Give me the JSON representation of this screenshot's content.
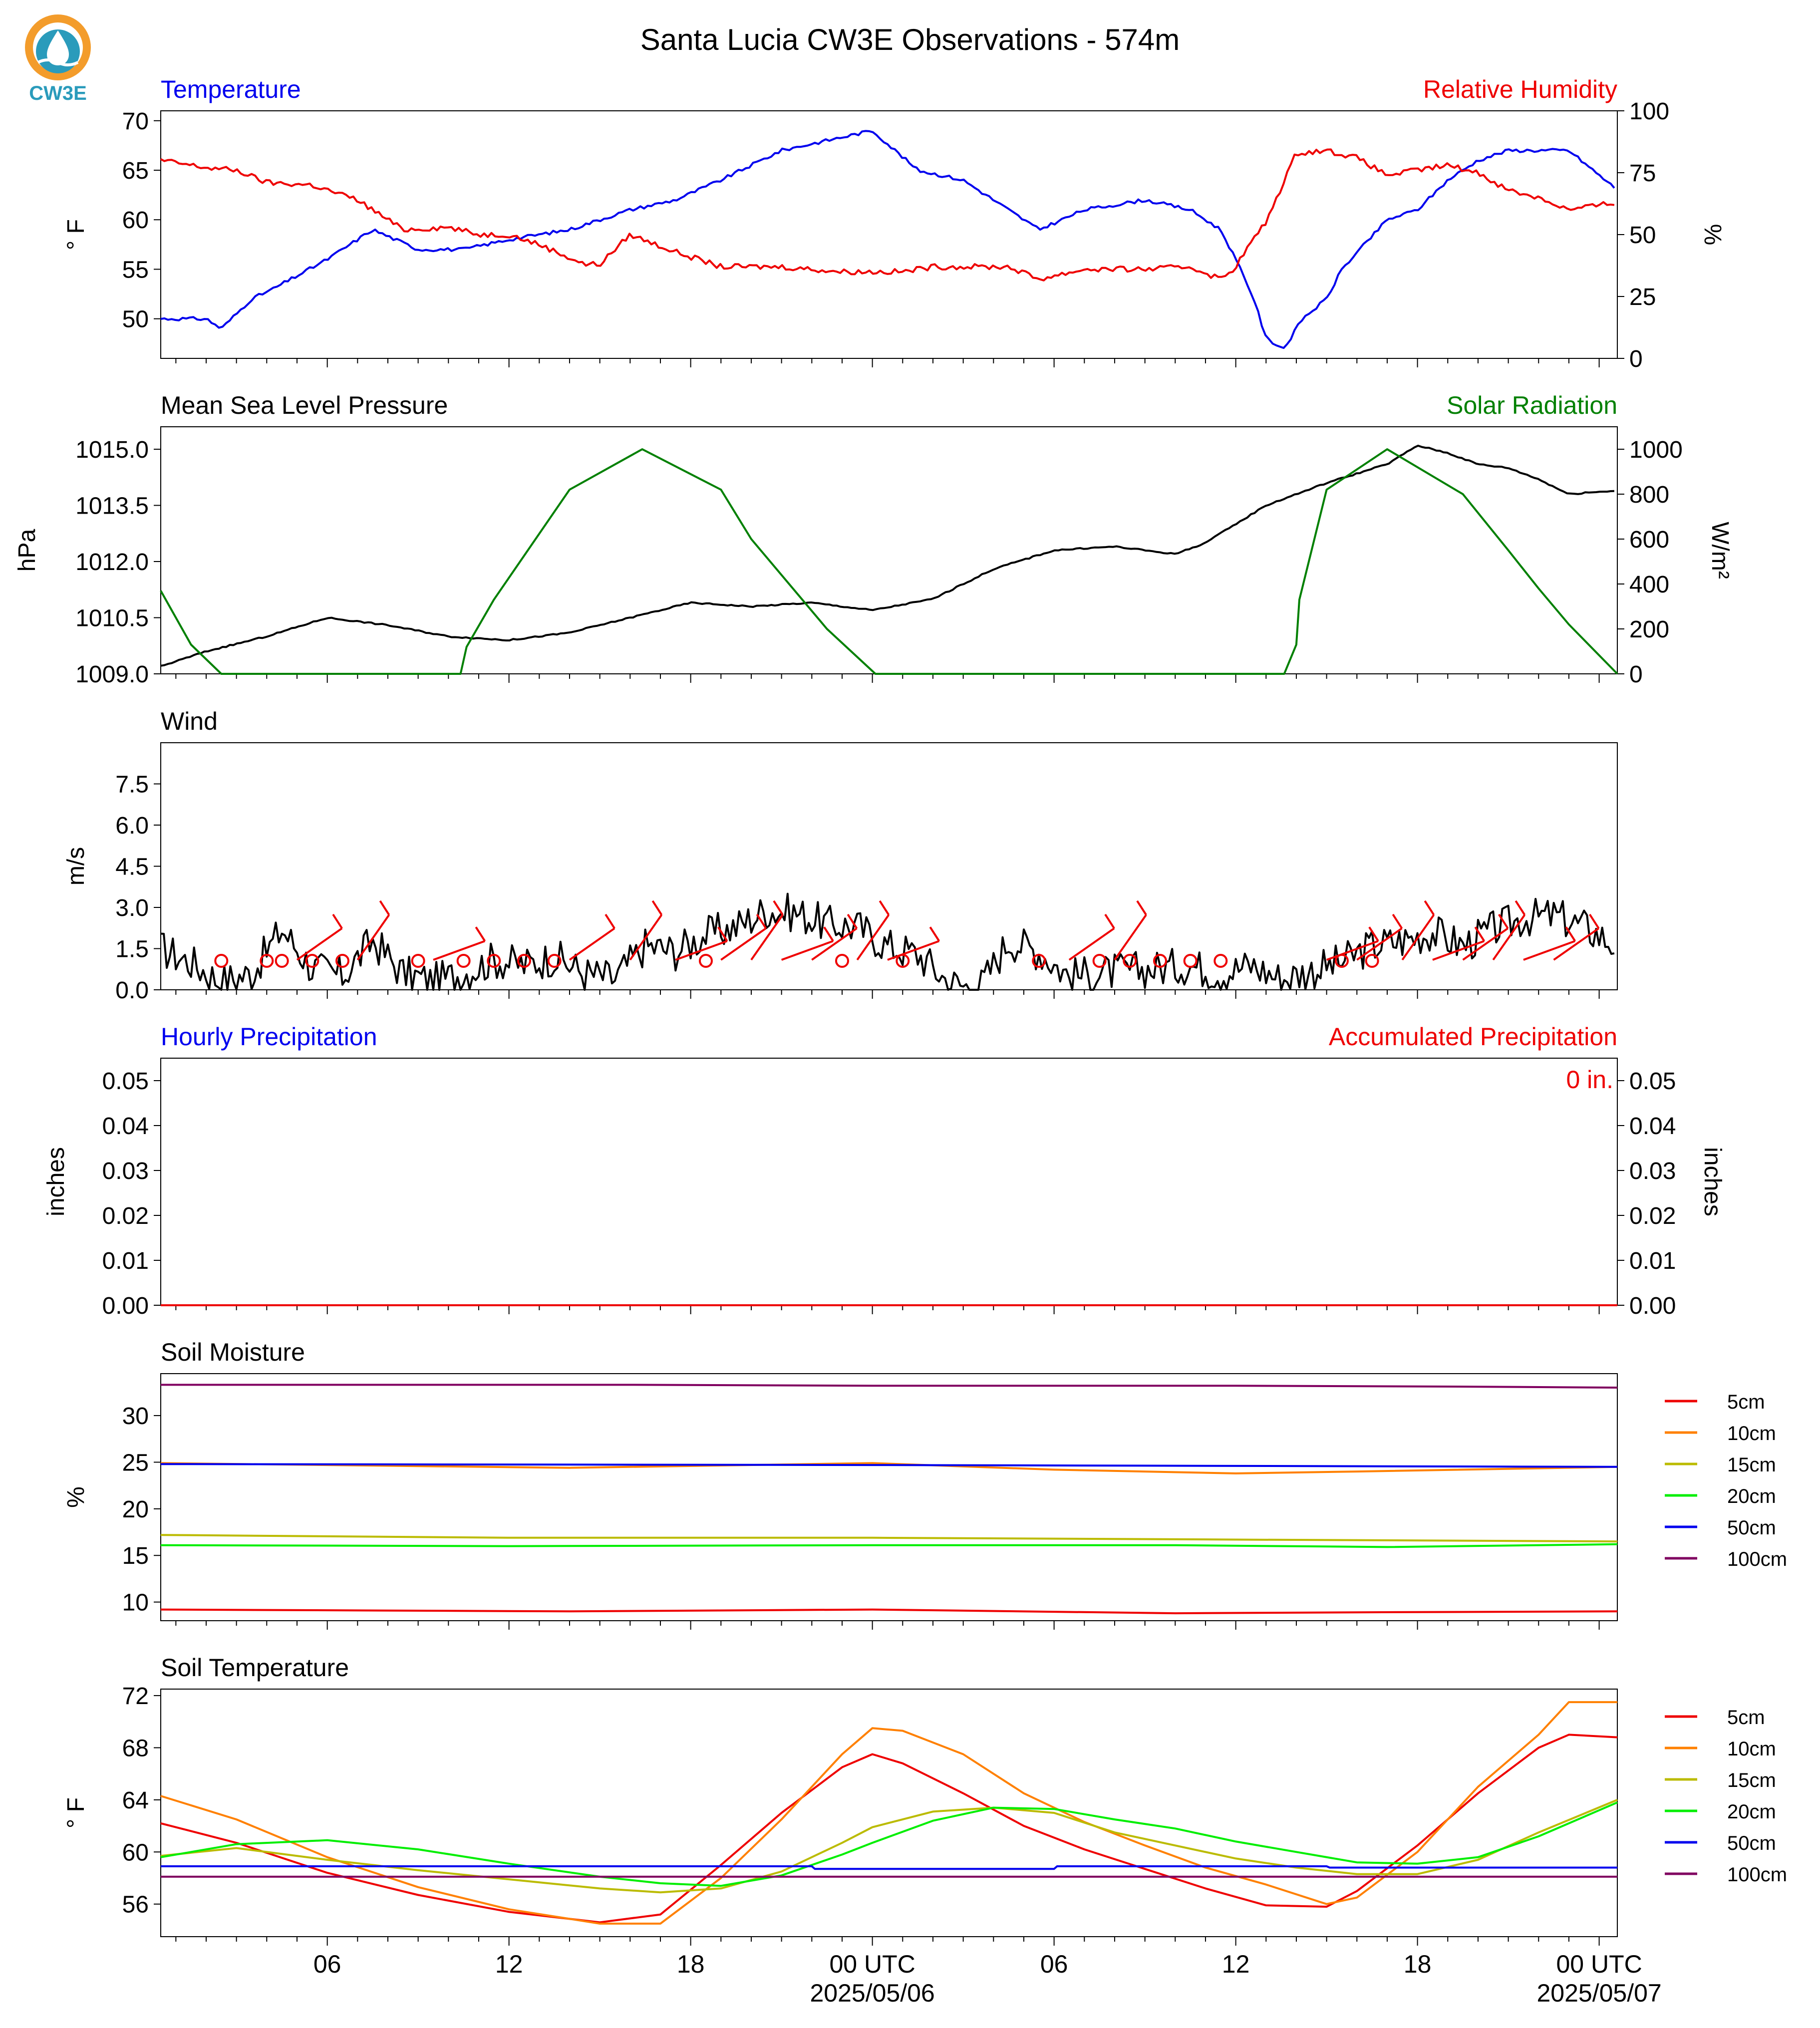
{
  "title": "Santa Lucia CW3E Observations - 574m",
  "logo": {
    "text": "CW3E",
    "colors": {
      "ring": "#f39c2b",
      "water": "#2a9bbb",
      "drop": "#1f6f8b"
    }
  },
  "colors": {
    "blue": "#0000ee",
    "red": "#ee0000",
    "black": "#000000",
    "green": "#008000"
  },
  "time_axis": {
    "range_hours": [
      -23.5,
      24.6
    ],
    "tick_labels": [
      {
        "h": -18,
        "label": "06"
      },
      {
        "h": -12,
        "label": "12"
      },
      {
        "h": -6,
        "label": "18"
      },
      {
        "h": 0,
        "label": "00 UTC",
        "sub": "2025/05/06"
      },
      {
        "h": 6,
        "label": "06"
      },
      {
        "h": 12,
        "label": "12"
      },
      {
        "h": 18,
        "label": "18"
      },
      {
        "h": 24,
        "label": "00 UTC",
        "sub": "2025/05/07"
      }
    ]
  },
  "panels": [
    {
      "id": "temp_rh",
      "title_left": "Temperature",
      "title_left_color": "#0000ee",
      "title_right": "Relative Humidity",
      "title_right_color": "#ee0000",
      "ylabel_left": "° F",
      "ylabel_right": "%",
      "ylim": [
        46,
        71
      ],
      "ylim_right": [
        0,
        100
      ],
      "yticks": [
        "50",
        "55",
        "60",
        "65",
        "70"
      ],
      "yticks_right": [
        "0",
        "25",
        "50",
        "75",
        "100"
      ]
    },
    {
      "id": "pressure_solar",
      "title_left": "Mean Sea Level Pressure",
      "title_left_color": "#000000",
      "title_right": "Solar Radiation",
      "title_right_color": "#008000",
      "ylabel_left": "hPa",
      "ylabel_right": "W/m²",
      "ylim": [
        1009.0,
        1015.6
      ],
      "ylim_right": [
        0,
        1100
      ],
      "yticks": [
        "1009.0",
        "1010.5",
        "1012.0",
        "1013.5",
        "1015.0"
      ],
      "yticks_right": [
        "0",
        "200",
        "400",
        "600",
        "800",
        "1000"
      ]
    },
    {
      "id": "wind",
      "title_left": "Wind",
      "title_left_color": "#000000",
      "ylabel_left": "m/s",
      "ylim": [
        0,
        9.0
      ],
      "yticks": [
        "0.0",
        "1.5",
        "3.0",
        "4.5",
        "6.0",
        "7.5"
      ]
    },
    {
      "id": "precip",
      "title_left": "Hourly Precipitation",
      "title_left_color": "#0000ee",
      "title_right": "Accumulated Precipitation",
      "title_right_color": "#ee0000",
      "ylabel_left": "inches",
      "ylabel_right": "inches",
      "ylim": [
        0,
        0.055
      ],
      "ylim_right": [
        0,
        0.055
      ],
      "yticks": [
        "0.00",
        "0.01",
        "0.02",
        "0.03",
        "0.04",
        "0.05"
      ],
      "yticks_right": [
        "0.00",
        "0.01",
        "0.02",
        "0.03",
        "0.04",
        "0.05"
      ],
      "accum_label": "0 in."
    },
    {
      "id": "soil_moist",
      "title_left": "Soil Moisture",
      "title_left_color": "#000000",
      "ylabel_left": "%",
      "ylim": [
        8,
        34.5
      ],
      "yticks": [
        "10",
        "15",
        "20",
        "25",
        "30"
      ]
    },
    {
      "id": "soil_temp",
      "title_left": "Soil Temperature",
      "title_left_color": "#000000",
      "ylabel_left": "° F",
      "ylim": [
        53.5,
        72.5
      ],
      "yticks": [
        "56",
        "60",
        "64",
        "68",
        "72"
      ]
    }
  ],
  "legend": [
    {
      "label": "5cm",
      "color": "#ee0000"
    },
    {
      "label": "10cm",
      "color": "#ff8000"
    },
    {
      "label": "15cm",
      "color": "#bbbb00"
    },
    {
      "label": "20cm",
      "color": "#00ee00"
    },
    {
      "label": "50cm",
      "color": "#0000ee"
    },
    {
      "label": "100cm",
      "color": "#800060"
    }
  ],
  "chart_data": [
    {
      "type": "line",
      "title": "Temperature / Relative Humidity",
      "series": [
        {
          "name": "Temperature",
          "color": "#0000ee",
          "axis": "left",
          "x": [
            -23.5,
            -22,
            -21.5,
            -20.5,
            -19.8,
            -18,
            -16.5,
            -15,
            -13.5,
            -12,
            -10,
            -8,
            -6.5,
            -5,
            -3,
            -1.5,
            0,
            1.5,
            3,
            4,
            5.5,
            7,
            9,
            10.5,
            11.5,
            12,
            12.6,
            13,
            13.6,
            14.2,
            15,
            15.5,
            17,
            18,
            19,
            20,
            21,
            23,
            24.6
          ],
          "y": [
            50,
            50,
            49,
            52,
            53,
            56,
            59,
            57,
            57,
            58,
            59,
            61,
            62,
            64,
            67,
            68,
            69,
            65,
            64,
            62,
            59,
            61,
            62,
            61,
            59,
            56,
            52,
            48,
            47,
            50,
            52,
            55,
            60,
            61,
            64,
            66,
            67,
            67,
            63
          ]
        },
        {
          "name": "Relative Humidity",
          "color": "#ee0000",
          "axis": "right",
          "x": [
            -23.5,
            -22,
            -21,
            -20,
            -18.5,
            -17,
            -15.5,
            -14,
            -13,
            -12,
            -11,
            -9.5,
            -9,
            -8,
            -6.5,
            -5,
            -3,
            -1,
            1,
            2,
            4.5,
            5.5,
            7,
            9,
            10.5,
            11.5,
            12,
            12.4,
            13,
            14,
            15,
            16,
            17,
            18,
            19,
            20,
            21,
            22,
            23,
            24.6
          ],
          "y": [
            80,
            77,
            76,
            71,
            70,
            64,
            52,
            53,
            50,
            50,
            46,
            38,
            38,
            50,
            43,
            37,
            37,
            35,
            35,
            37,
            37,
            32,
            36,
            36,
            37,
            32,
            37,
            45,
            55,
            83,
            84,
            81,
            74,
            76,
            78,
            75,
            68,
            65,
            60,
            63
          ]
        }
      ]
    },
    {
      "type": "line",
      "title": "Mean Sea Level Pressure / Solar Radiation",
      "series": [
        {
          "name": "Mean Sea Level Pressure",
          "color": "#000000",
          "axis": "left",
          "x": [
            -23.5,
            -22,
            -20,
            -18,
            -16,
            -14,
            -12,
            -10,
            -8,
            -6,
            -4,
            -2,
            0,
            2,
            4,
            6,
            8,
            10,
            11,
            13,
            15,
            17,
            18,
            19,
            20,
            21,
            22,
            23,
            24.6
          ],
          "y": [
            1009.2,
            1009.6,
            1010.0,
            1010.5,
            1010.3,
            1010.0,
            1009.9,
            1010.1,
            1010.5,
            1010.9,
            1010.8,
            1010.9,
            1010.7,
            1011.0,
            1011.8,
            1012.3,
            1012.4,
            1012.2,
            1012.5,
            1013.5,
            1014.1,
            1014.6,
            1015.1,
            1014.9,
            1014.6,
            1014.5,
            1014.2,
            1013.8,
            1013.9
          ]
        },
        {
          "name": "Solar Radiation",
          "color": "#008000",
          "axis": "right",
          "x": [
            -23.5,
            -22.5,
            -21.5,
            -13.6,
            -13.4,
            -12.5,
            -10,
            -7.6,
            -5,
            -4,
            -1.5,
            0.1,
            0.6,
            1.5,
            2.5,
            2.6,
            13.6,
            14,
            14.1,
            15,
            17,
            19.5,
            21,
            22,
            23,
            24.6
          ],
          "y": [
            370,
            130,
            0,
            0,
            120,
            330,
            820,
            1000,
            820,
            600,
            200,
            0,
            0,
            0,
            0,
            0,
            0,
            130,
            330,
            820,
            1000,
            800,
            550,
            380,
            220,
            0
          ]
        }
      ]
    },
    {
      "type": "line",
      "title": "Wind",
      "series": [
        {
          "name": "Wind",
          "color": "#000000",
          "x": [
            -23.5,
            -22.5,
            -21.5,
            -20.5,
            -19.5,
            -18.5,
            -17.5,
            -16.5,
            -15.5,
            -14.5,
            -13.5,
            -12.5,
            -11.5,
            -10.5,
            -9.5,
            -8.5,
            -7.5,
            -6.5,
            -5.5,
            -4.5,
            -3.5,
            -2.5,
            -1.5,
            -0.5,
            0.5,
            1.5,
            2.5,
            3.5,
            4.5,
            5.5,
            6.5,
            7.5,
            8.5,
            9.5,
            10.5,
            11.5,
            12.5,
            13.5,
            14.5,
            15.5,
            16.5,
            17.5,
            18.5,
            19.5,
            20.5,
            21.5,
            22.5,
            23.5,
            24.6
          ],
          "y": [
            1.5,
            1.0,
            0.3,
            0.6,
            2.2,
            0.8,
            0.5,
            1.8,
            0.6,
            0.3,
            0.6,
            1.1,
            0.9,
            1.2,
            0.6,
            0.4,
            1.6,
            1.4,
            2.0,
            2.3,
            2.9,
            2.8,
            2.4,
            2.3,
            1.6,
            1.3,
            0.3,
            0.0,
            1.8,
            1.4,
            0.5,
            0.6,
            0.7,
            0.8,
            0.9,
            0.6,
            0.9,
            0.4,
            0.7,
            1.0,
            1.6,
            1.8,
            2.1,
            1.6,
            2.2,
            2.6,
            2.7,
            2.3,
            1.6
          ]
        }
      ]
    },
    {
      "type": "line",
      "title": "Hourly Precipitation / Accumulated Precipitation",
      "series": [
        {
          "name": "Accumulated Precipitation",
          "color": "#ee0000",
          "x": [
            -23.5,
            24.6
          ],
          "y": [
            0,
            0
          ]
        }
      ]
    },
    {
      "type": "line",
      "title": "Soil Moisture",
      "series": [
        {
          "name": "5cm",
          "color": "#ee0000",
          "x": [
            -23.5,
            -10,
            0,
            10,
            16,
            24.6
          ],
          "y": [
            9.2,
            9.0,
            9.2,
            8.8,
            8.9,
            9.0
          ]
        },
        {
          "name": "10cm",
          "color": "#ff8000",
          "x": [
            -23.5,
            -10,
            0,
            6,
            12,
            16,
            24.6
          ],
          "y": [
            24.9,
            24.4,
            24.9,
            24.2,
            23.8,
            24.0,
            24.5
          ]
        },
        {
          "name": "15cm",
          "color": "#bbbb00",
          "x": [
            -23.5,
            -12,
            0,
            12,
            24.6
          ],
          "y": [
            17.2,
            16.9,
            16.9,
            16.7,
            16.5
          ]
        },
        {
          "name": "20cm",
          "color": "#00ee00",
          "x": [
            -23.5,
            -12,
            0,
            10,
            17,
            24.6
          ],
          "y": [
            16.1,
            16.0,
            16.1,
            16.1,
            15.9,
            16.2
          ]
        },
        {
          "name": "50cm",
          "color": "#0000ee",
          "x": [
            -23.5,
            0,
            12,
            24.6
          ],
          "y": [
            24.8,
            24.7,
            24.6,
            24.5
          ]
        },
        {
          "name": "100cm",
          "color": "#800060",
          "x": [
            -23.5,
            -8,
            0,
            12,
            20,
            24.6
          ],
          "y": [
            33.3,
            33.3,
            33.2,
            33.2,
            33.1,
            33.0
          ]
        }
      ]
    },
    {
      "type": "line",
      "title": "Soil Temperature",
      "series": [
        {
          "name": "5cm",
          "color": "#ee0000",
          "x": [
            -23.5,
            -21,
            -18,
            -15,
            -12,
            -9,
            -7,
            -5,
            -3,
            -1,
            0,
            1,
            3,
            5,
            7,
            9,
            11,
            13,
            15,
            16,
            18,
            20,
            22,
            23,
            24.6
          ],
          "y": [
            62.2,
            60.7,
            58.4,
            56.7,
            55.4,
            54.6,
            55.2,
            59,
            63,
            66.5,
            67.5,
            66.8,
            64.5,
            62,
            60.2,
            58.7,
            57.2,
            55.9,
            55.8,
            57,
            60.5,
            64.5,
            68,
            69,
            68.8
          ]
        },
        {
          "name": "10cm",
          "color": "#ff8000",
          "x": [
            -23.5,
            -21,
            -18,
            -15,
            -12,
            -9,
            -7,
            -5,
            -3,
            -1,
            0,
            1,
            3,
            5,
            7,
            9,
            11,
            13,
            15,
            16,
            18,
            20,
            22,
            23,
            24.6
          ],
          "y": [
            64.3,
            62.5,
            59.6,
            57.3,
            55.6,
            54.5,
            54.5,
            58,
            62.5,
            67.5,
            69.5,
            69.3,
            67.5,
            64.5,
            62.3,
            60.5,
            58.8,
            57.5,
            56,
            56.5,
            60,
            65,
            69,
            71.5,
            71.5
          ]
        },
        {
          "name": "15cm",
          "color": "#bbbb00",
          "x": [
            -23.5,
            -21,
            -18,
            -15,
            -12,
            -9,
            -7,
            -5,
            -3,
            -1,
            0,
            2,
            4,
            6,
            8,
            10,
            12,
            14,
            16,
            18,
            20,
            22,
            24.6
          ],
          "y": [
            59.7,
            60.3,
            59.4,
            58.6,
            57.9,
            57.2,
            56.9,
            57.2,
            58.5,
            60.7,
            61.9,
            63.1,
            63.4,
            63,
            61.5,
            60.5,
            59.5,
            58.8,
            58.3,
            58.3,
            59.4,
            61.5,
            64
          ]
        },
        {
          "name": "20cm",
          "color": "#00ee00",
          "x": [
            -23.5,
            -21,
            -18,
            -15,
            -12,
            -9,
            -7,
            -5,
            -3,
            -1,
            0,
            2,
            4,
            6,
            8,
            10,
            12,
            14,
            16,
            18,
            20,
            22,
            24.6
          ],
          "y": [
            59.6,
            60.6,
            60.9,
            60.2,
            59.1,
            58.1,
            57.6,
            57.4,
            58.2,
            59.8,
            60.7,
            62.4,
            63.4,
            63.3,
            62.5,
            61.8,
            60.8,
            60,
            59.2,
            59.1,
            59.6,
            61.2,
            63.8
          ]
        },
        {
          "name": "50cm",
          "color": "#0000ee",
          "x": [
            -23.5,
            -2,
            -1.9,
            6,
            6.1,
            15,
            15.1,
            24.6
          ],
          "y": [
            58.9,
            58.9,
            58.7,
            58.7,
            58.9,
            58.9,
            58.8,
            58.8
          ]
        },
        {
          "name": "100cm",
          "color": "#800060",
          "x": [
            -23.5,
            24.6
          ],
          "y": [
            58.1,
            58.1
          ]
        }
      ]
    }
  ]
}
